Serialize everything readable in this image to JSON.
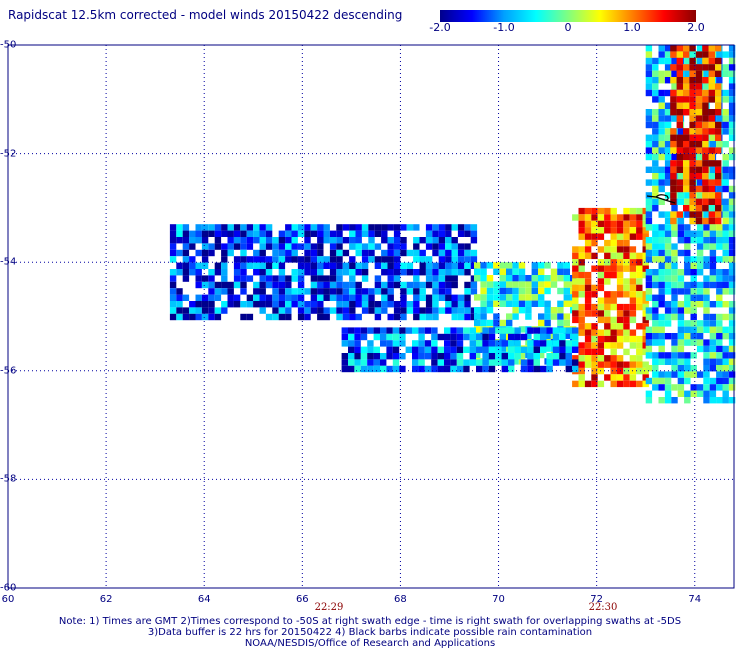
{
  "title": "Rapidscat 12.5km corrected - model winds 20150422 descending",
  "colorbar": {
    "labels": [
      "-2.0",
      "-1.0",
      "0",
      "1.0",
      "2.0"
    ],
    "range": [
      -2.0,
      2.0
    ]
  },
  "axes": {
    "lat_labels": [
      "-50",
      "-52",
      "-54",
      "-56",
      "-58",
      "-60"
    ],
    "lon_labels": [
      "60",
      "62",
      "64",
      "66",
      "68",
      "70",
      "72",
      "74"
    ]
  },
  "time_labels": [
    "22:29",
    "22:30"
  ],
  "notes": [
    "Note: 1) Times are GMT 2)Times correspond to -50S at right swath edge - time is right swath for overlapping swaths at -5DS",
    "3)Data buffer is 22 hrs for 20150422 4) Black barbs indicate possible rain contamination",
    "NOAA/NESDIS/Office of Research and Applications"
  ],
  "chart_data": {
    "type": "heatmap",
    "title": "Rapidscat 12.5km corrected - model winds 20150422 descending",
    "x_range": [
      60,
      74.8
    ],
    "y_range": [
      -60,
      -50
    ],
    "x_ticks": [
      60,
      62,
      64,
      66,
      68,
      70,
      72,
      74
    ],
    "y_ticks": [
      -50,
      -52,
      -54,
      -56,
      -58,
      -60
    ],
    "color_range": [
      -2.0,
      2.0
    ],
    "colormap": [
      "#00008b",
      "#0000ff",
      "#00a0ff",
      "#00ffff",
      "#80ff80",
      "#ffff00",
      "#ff8000",
      "#ff0000",
      "#8b0000"
    ],
    "grid": true,
    "swaths": [
      {
        "lon_range": [
          63.3,
          69.5
        ],
        "lat_range": [
          -53.3,
          -55.0
        ],
        "mean": -1.4
      },
      {
        "lon_range": [
          69.5,
          71.5
        ],
        "lat_range": [
          -54.0,
          -55.8
        ],
        "mean": -0.4
      },
      {
        "lon_range": [
          71.5,
          73.0
        ],
        "lat_range": [
          -53.0,
          -56.2
        ],
        "mean": 1.0
      },
      {
        "lon_range": [
          66.8,
          71.5
        ],
        "lat_range": [
          -55.2,
          -56.0
        ],
        "mean": -1.2
      },
      {
        "lon_range": [
          73.0,
          74.8
        ],
        "lat_range": [
          -50.0,
          -56.5
        ],
        "mean": -0.6
      },
      {
        "lon_range": [
          73.5,
          74.5
        ],
        "lat_range": [
          -50.0,
          -53.2
        ],
        "mean": 1.5
      }
    ]
  }
}
